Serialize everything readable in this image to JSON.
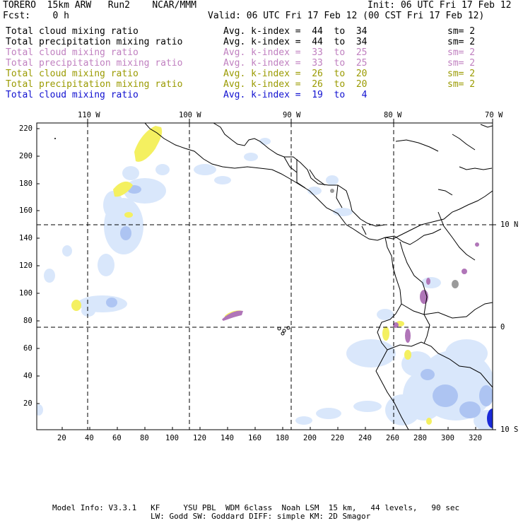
{
  "header": {
    "model": "TORERO  15km ARW   Run2    NCAR/MMM",
    "init": "Init: 06 UTC Fri 17 Feb 12",
    "fcst": "Fcst:    0 h",
    "valid": "Valid: 06 UTC Fri 17 Feb 12 (00 CST Fri 17 Feb 12)"
  },
  "legend": [
    {
      "field": "Total cloud mixing ratio",
      "kindex": "Avg. k-index =  44  to  34",
      "sm": "sm= 2",
      "color": "#000000"
    },
    {
      "field": "Total precipitation mixing ratio",
      "kindex": "Avg. k-index =  44  to  34",
      "sm": "sm= 2",
      "color": "#000000"
    },
    {
      "field": "Total cloud mixing ratio",
      "kindex": "Avg. k-index =  33  to  25",
      "sm": "sm= 2",
      "color": "#c080c0"
    },
    {
      "field": "Total precipitation mixing ratio",
      "kindex": "Avg. k-index =  33  to  25",
      "sm": "sm= 2",
      "color": "#c080c0"
    },
    {
      "field": "Total cloud mixing ratio",
      "kindex": "Avg. k-index =  26  to  20",
      "sm": "sm= 2",
      "color": "#9a9a00"
    },
    {
      "field": "Total precipitation mixing ratio",
      "kindex": "Avg. k-index =  26  to  20",
      "sm": "sm= 2",
      "color": "#9a9a00"
    },
    {
      "field": "Total cloud mixing ratio",
      "kindex": "Avg. k-index =  19  to   4",
      "sm": "",
      "color": "#1010d0"
    }
  ],
  "map": {
    "lon_labels": [
      "110 W",
      "100 W",
      "90 W",
      "80 W",
      "70 W"
    ],
    "lat_labels": [
      "10 N",
      "0",
      "10 S"
    ],
    "y_ticks": [
      "220",
      "200",
      "180",
      "160",
      "140",
      "120",
      "100",
      "80",
      "60",
      "40",
      "20"
    ],
    "x_ticks": [
      "20",
      "40",
      "60",
      "80",
      "100",
      "120",
      "140",
      "160",
      "180",
      "200",
      "220",
      "240",
      "260",
      "280",
      "300",
      "320"
    ]
  },
  "footer": {
    "line1": "Model Info: V3.3.1   KF     YSU PBL  WDM 6class  Noah LSM  15 km,   44 levels,   90 sec",
    "line2": "LW: Godd SW: Goddard DIFF: simple KM: 2D Smagor"
  }
}
